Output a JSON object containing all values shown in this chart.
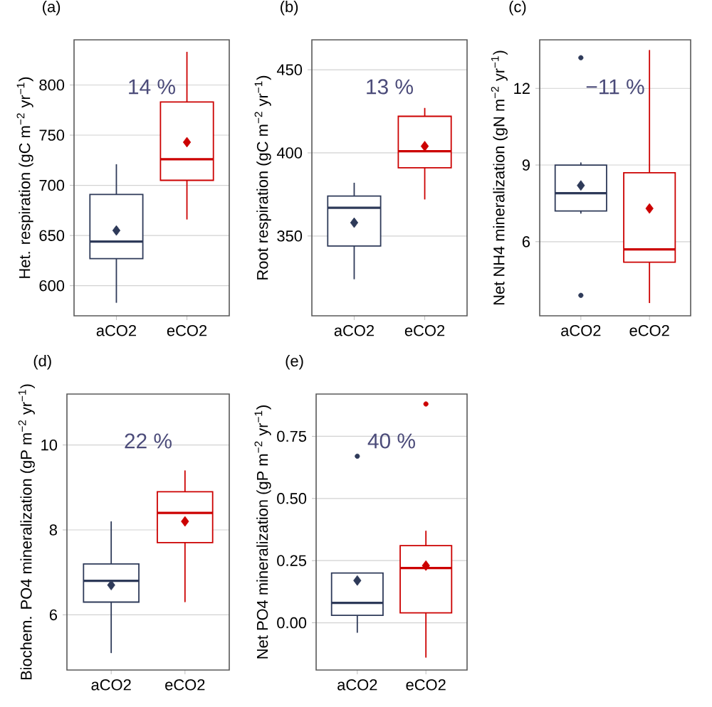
{
  "chart_data": [
    {
      "type": "box",
      "title": "(a)",
      "ylabel": "Het. respiration (gC m$^{−2}$ yr$^{−1}$)",
      "categories": [
        "aCO2",
        "eCO2"
      ],
      "colors": [
        "#2e3a59",
        "#cc0000"
      ],
      "ylim": [
        570,
        845
      ],
      "yticks": [
        600,
        650,
        700,
        750,
        800
      ],
      "grid": "y",
      "annotations": [
        "14 %"
      ],
      "boxes": [
        {
          "low": 583,
          "q1": 627,
          "median": 644,
          "q3": 691,
          "high": 721,
          "mean": 655
        },
        {
          "low": 666,
          "q1": 705,
          "median": 726,
          "q3": 783,
          "high": 833,
          "mean": 743
        }
      ]
    },
    {
      "type": "box",
      "title": "(b)",
      "ylabel": "Root respiration (gC m$^{−2}$ yr$^{−1}$)",
      "categories": [
        "aCO2",
        "eCO2"
      ],
      "colors": [
        "#2e3a59",
        "#cc0000"
      ],
      "ylim": [
        302,
        468
      ],
      "yticks": [
        350,
        400,
        450
      ],
      "grid": "y",
      "annotations": [
        "13 %"
      ],
      "boxes": [
        {
          "low": 324,
          "q1": 344,
          "median": 367,
          "q3": 374,
          "high": 382,
          "mean": 358
        },
        {
          "low": 372,
          "q1": 391,
          "median": 401,
          "q3": 422,
          "high": 427,
          "mean": 404
        }
      ]
    },
    {
      "type": "box",
      "title": "(c)",
      "ylabel": "Net NH4 mineralization (gN m$^{−2}$ yr$^{−1}$)",
      "categories": [
        "aCO2",
        "eCO2"
      ],
      "colors": [
        "#2e3a59",
        "#cc0000"
      ],
      "ylim": [
        3.1,
        13.9
      ],
      "yticks": [
        6,
        9,
        12
      ],
      "grid": "y",
      "annotations": [
        "−11 %"
      ],
      "boxes": [
        {
          "low": 7.1,
          "q1": 7.2,
          "median": 7.9,
          "q3": 9.0,
          "high": 9.1,
          "mean": 8.2,
          "outliers": [
            13.2,
            3.9
          ]
        },
        {
          "low": 3.6,
          "q1": 5.2,
          "median": 5.7,
          "q3": 8.7,
          "high": 13.5,
          "mean": 7.3
        }
      ]
    },
    {
      "type": "box",
      "title": "(d)",
      "ylabel": "Biochem. PO4 mineralization (gP m$^{−2}$ yr$^{−1}$)",
      "categories": [
        "aCO2",
        "eCO2"
      ],
      "colors": [
        "#2e3a59",
        "#cc0000"
      ],
      "ylim": [
        4.7,
        11.2
      ],
      "yticks": [
        6,
        8,
        10
      ],
      "grid": "y",
      "annotations": [
        "22 %"
      ],
      "boxes": [
        {
          "low": 5.1,
          "q1": 6.3,
          "median": 6.8,
          "q3": 7.2,
          "high": 8.2,
          "mean": 6.7
        },
        {
          "low": 6.3,
          "q1": 7.7,
          "median": 8.4,
          "q3": 8.9,
          "high": 9.4,
          "mean": 8.2
        }
      ]
    },
    {
      "type": "box",
      "title": "(e)",
      "ylabel": "Net PO4 mineralization (gP m$^{−2}$ yr$^{−1}$)",
      "categories": [
        "aCO2",
        "eCO2"
      ],
      "colors": [
        "#2e3a59",
        "#cc0000"
      ],
      "ylim": [
        -0.19,
        0.92
      ],
      "yticks": [
        {
          "value": 0,
          "label": "0.00"
        },
        {
          "value": 0.25,
          "label": "0.25"
        },
        {
          "value": 0.5,
          "label": "0.50"
        },
        {
          "value": 0.75,
          "label": "0.75"
        }
      ],
      "grid": "y",
      "annotations": [
        "40 %"
      ],
      "boxes": [
        {
          "low": -0.04,
          "q1": 0.03,
          "median": 0.08,
          "q3": 0.2,
          "high": 0.2,
          "mean": 0.17,
          "outliers": [
            0.67
          ]
        },
        {
          "low": -0.14,
          "q1": 0.04,
          "median": 0.22,
          "q3": 0.31,
          "high": 0.37,
          "mean": 0.23,
          "outliers": [
            0.88
          ]
        }
      ]
    }
  ]
}
